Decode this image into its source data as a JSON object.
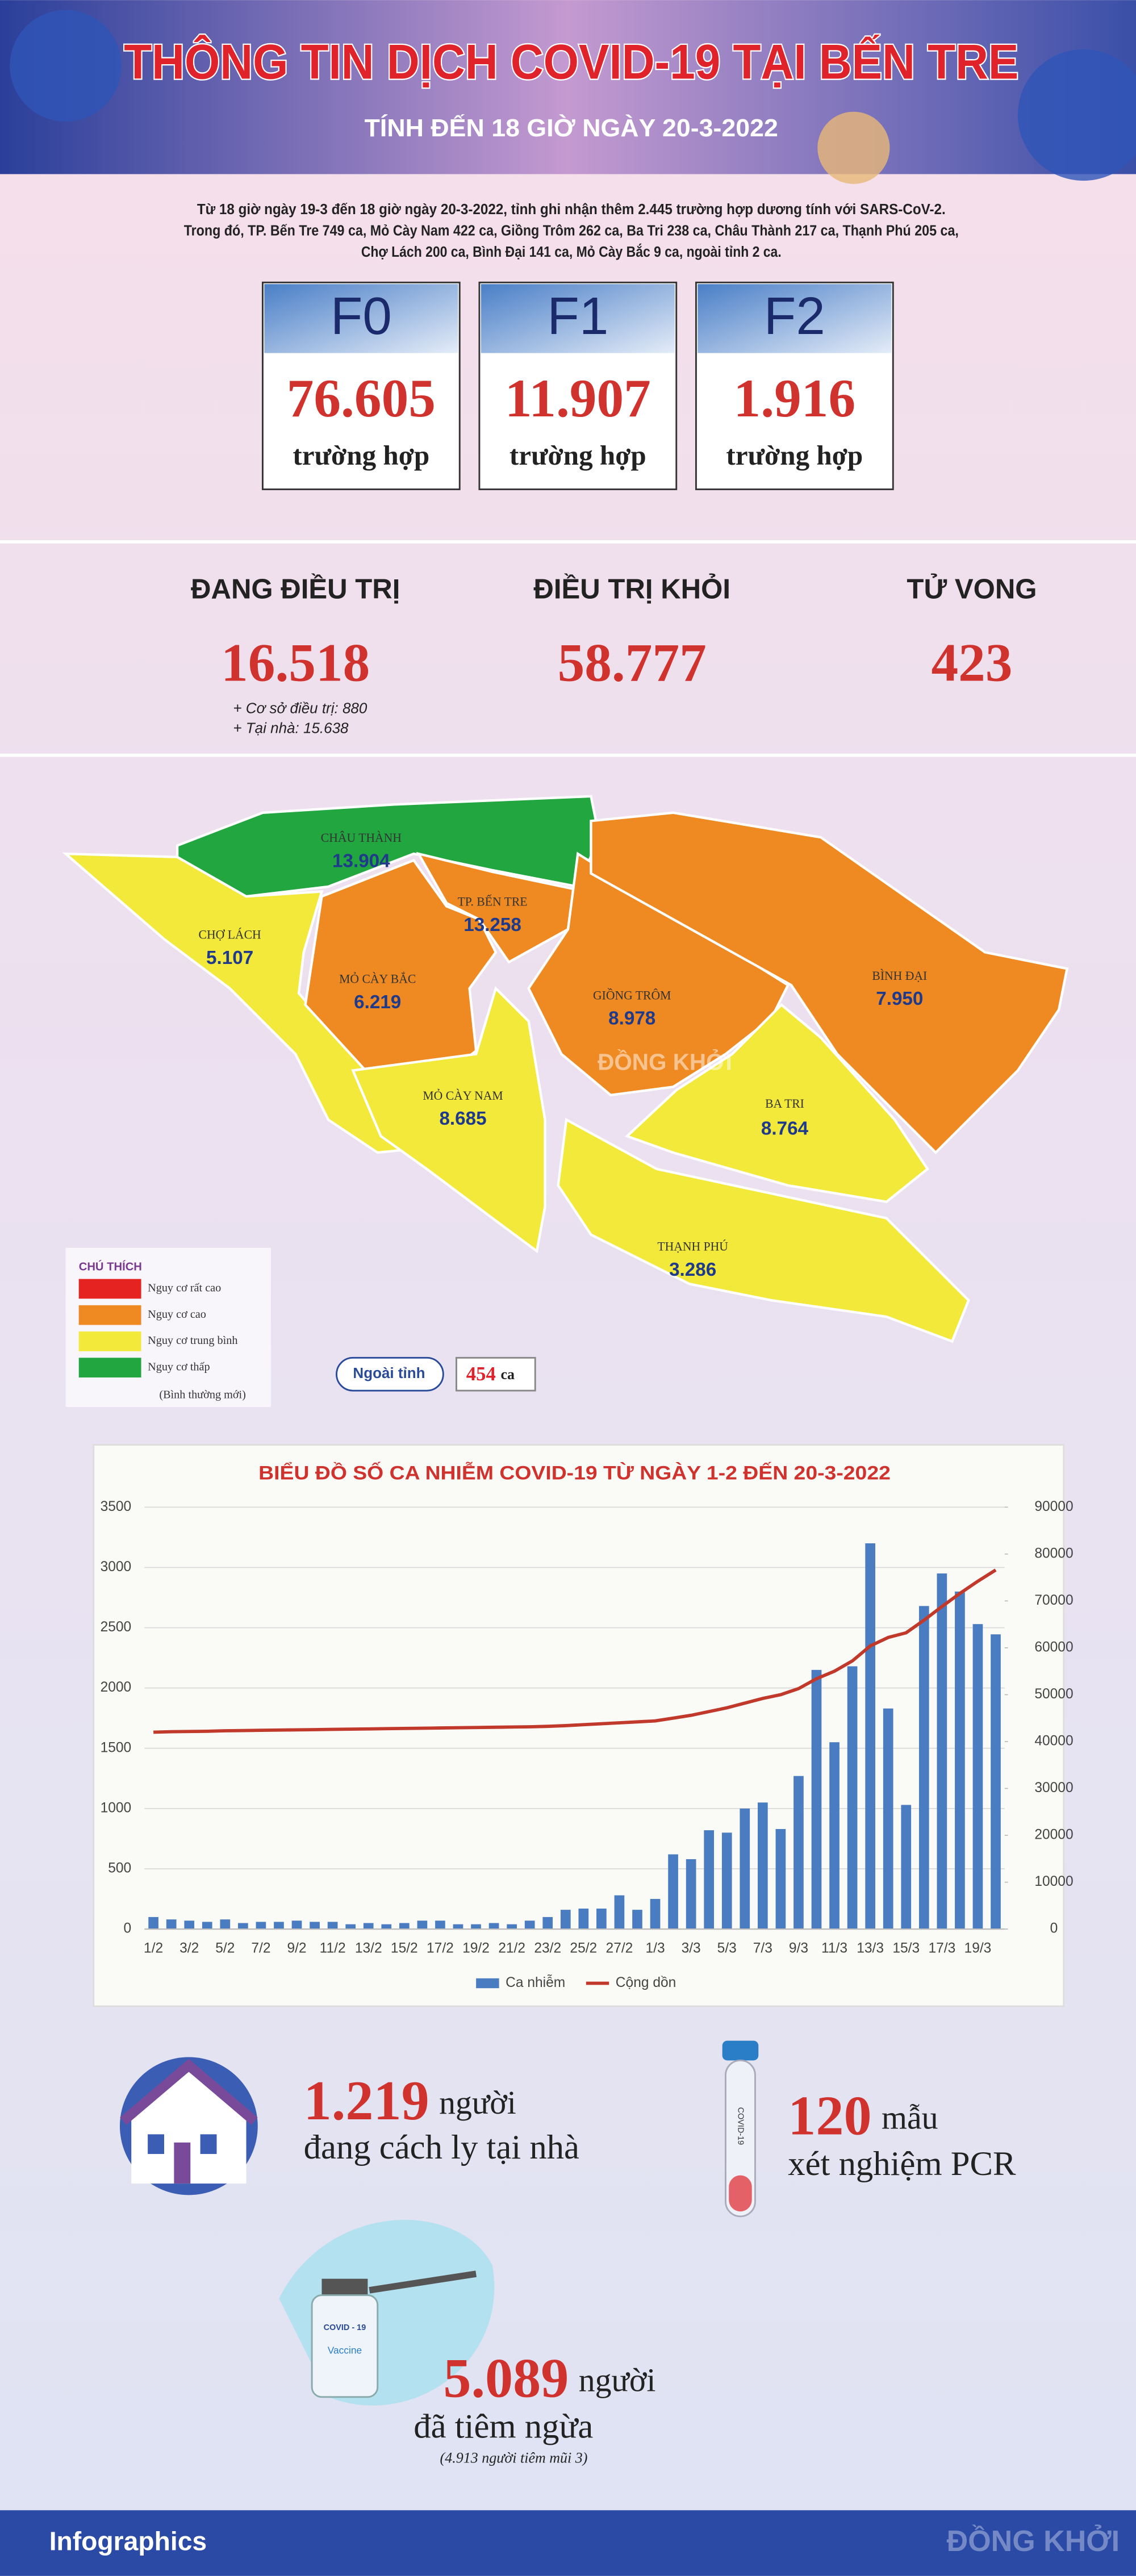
{
  "header": {
    "title": "THÔNG TIN DỊCH COVID-19 TẠI BẾN TRE",
    "subtitle": "TÍNH ĐẾN 18 GIỜ NGÀY 20-3-2022"
  },
  "summary": {
    "lines": [
      "Từ 18 giờ ngày 19-3 đến 18 giờ ngày 20-3-2022, tỉnh ghi nhận thêm 2.445 trường hợp dương tính với SARS-CoV-2.",
      "Trong đó, TP. Bến Tre 749 ca, Mỏ Cày Nam 422 ca, Giồng Trôm 262 ca, Ba Tri 238 ca, Châu Thành 217 ca, Thạnh Phú 205 ca,",
      "Chợ Lách 200 ca, Bình Đại 141 ca, Mỏ Cày Bắc 9 ca, ngoài tỉnh 2 ca."
    ]
  },
  "cards": [
    {
      "label": "F0",
      "value": "76.605",
      "unit": "trường hợp"
    },
    {
      "label": "F1",
      "value": "11.907",
      "unit": "trường hợp"
    },
    {
      "label": "F2",
      "value": "1.916",
      "unit": "trường hợp"
    }
  ],
  "treatment": [
    {
      "label": "ĐANG ĐIỀU TRỊ",
      "value": "16.518",
      "notes": [
        "+ Cơ sở điều trị: 880",
        "+ Tại nhà: 15.638"
      ]
    },
    {
      "label": "ĐIỀU TRỊ KHỎI",
      "value": "58.777"
    },
    {
      "label": "TỬ VONG",
      "value": "423"
    }
  ],
  "map": {
    "watermark": "ĐỒNG KHỞI",
    "districts": [
      {
        "name": "CHÂU THÀNH",
        "value": "13.904",
        "color": "#22a640"
      },
      {
        "name": "CHỢ LÁCH",
        "value": "5.107",
        "color": "#f2e93a"
      },
      {
        "name": "MỎ CÀY BẮC",
        "value": "6.219",
        "color": "#ef8a22"
      },
      {
        "name": "TP. BẾN TRE",
        "value": "13.258",
        "color": "#ef8a22"
      },
      {
        "name": "GIỒNG TRÔM",
        "value": "8.978",
        "color": "#ef8a22"
      },
      {
        "name": "MỎ CÀY NAM",
        "value": "8.685",
        "color": "#f2e93a"
      },
      {
        "name": "BÌNH ĐẠI",
        "value": "7.950",
        "color": "#ef8a22"
      },
      {
        "name": "BA TRI",
        "value": "8.764",
        "color": "#f2e93a"
      },
      {
        "name": "THẠNH PHÚ",
        "value": "3.286",
        "color": "#f2e93a"
      }
    ]
  },
  "legend": {
    "title": "CHÚ THÍCH",
    "items": [
      {
        "label": "Nguy cơ rất cao",
        "color": "#e52421"
      },
      {
        "label": "Nguy cơ cao",
        "color": "#ef8a22"
      },
      {
        "label": "Nguy cơ trung bình",
        "color": "#f2e93a"
      },
      {
        "label": "Nguy cơ thấp",
        "note": "(Bình thường mới)",
        "color": "#22a640"
      }
    ]
  },
  "outside": {
    "label": "Ngoài tỉnh",
    "count": "454",
    "unit": "ca"
  },
  "chart_data": {
    "type": "bar",
    "title": "BIỂU ĐỒ SỐ CA NHIỄM COVID-19 TỪ NGÀY 1-2 ĐẾN 20-3-2022",
    "categories": [
      "1/2",
      null,
      "3/2",
      null,
      "5/2",
      null,
      "7/2",
      null,
      "9/2",
      null,
      "11/2",
      null,
      "13/2",
      null,
      "15/2",
      null,
      "17/2",
      null,
      "19/2",
      null,
      "21/2",
      null,
      "23/2",
      null,
      "25/2",
      null,
      "27/2",
      null,
      "1/3",
      null,
      "3/3",
      null,
      "5/3",
      null,
      "7/3",
      null,
      "9/3",
      null,
      "11/3",
      null,
      "13/3",
      null,
      "15/3",
      null,
      "17/3",
      null,
      "19/3",
      null
    ],
    "series": [
      {
        "name": "Ca nhiễm",
        "type": "bar",
        "color": "#4a7cc1",
        "values": [
          100,
          80,
          70,
          60,
          80,
          50,
          60,
          60,
          70,
          60,
          60,
          40,
          50,
          40,
          50,
          70,
          70,
          40,
          40,
          50,
          40,
          70,
          100,
          160,
          170,
          170,
          280,
          160,
          250,
          620,
          580,
          820,
          800,
          1000,
          1050,
          830,
          1270,
          2150,
          1550,
          2180,
          3200,
          1830,
          1030,
          2680,
          2950,
          2800,
          2530,
          2445
        ]
      },
      {
        "name": "Cộng dồn",
        "type": "line",
        "axis": "y2",
        "color": "#c0392b",
        "values": [
          42000,
          42100,
          42150,
          42200,
          42300,
          42350,
          42400,
          42450,
          42500,
          42550,
          42600,
          42650,
          42700,
          42750,
          42800,
          42850,
          42900,
          42950,
          43000,
          43050,
          43100,
          43150,
          43250,
          43400,
          43600,
          43800,
          44000,
          44200,
          44400,
          45000,
          45600,
          46400,
          47200,
          48200,
          49200,
          50000,
          51300,
          53400,
          55000,
          57200,
          60400,
          62200,
          63200,
          65900,
          68800,
          71600,
          74200,
          76605
        ]
      }
    ],
    "ylim": [
      0,
      3500
    ],
    "yticks": [
      0,
      500,
      1000,
      1500,
      2000,
      2500,
      3000,
      3500
    ],
    "y2lim": [
      0,
      90000
    ],
    "y2ticks": [
      0,
      10000,
      20000,
      30000,
      40000,
      50000,
      60000,
      70000,
      80000,
      90000
    ],
    "grid": true,
    "legend": "bottom"
  },
  "stats": [
    {
      "value": "1.219",
      "unit": "người",
      "text": "đang cách ly tại nhà"
    },
    {
      "value": "120",
      "unit": "mẫu",
      "text": "xét nghiệm PCR"
    },
    {
      "value": "5.089",
      "unit": "người",
      "text": "đã tiêm ngừa",
      "note": "(4.913 người tiêm mũi 3)"
    }
  ],
  "icons": {
    "tube": "COVID-19",
    "vial_top": "COVID - 19",
    "vial_bottom": "Vaccine"
  },
  "footer": {
    "label": "Infographics",
    "brand": "ĐỒNG KHỞI"
  }
}
